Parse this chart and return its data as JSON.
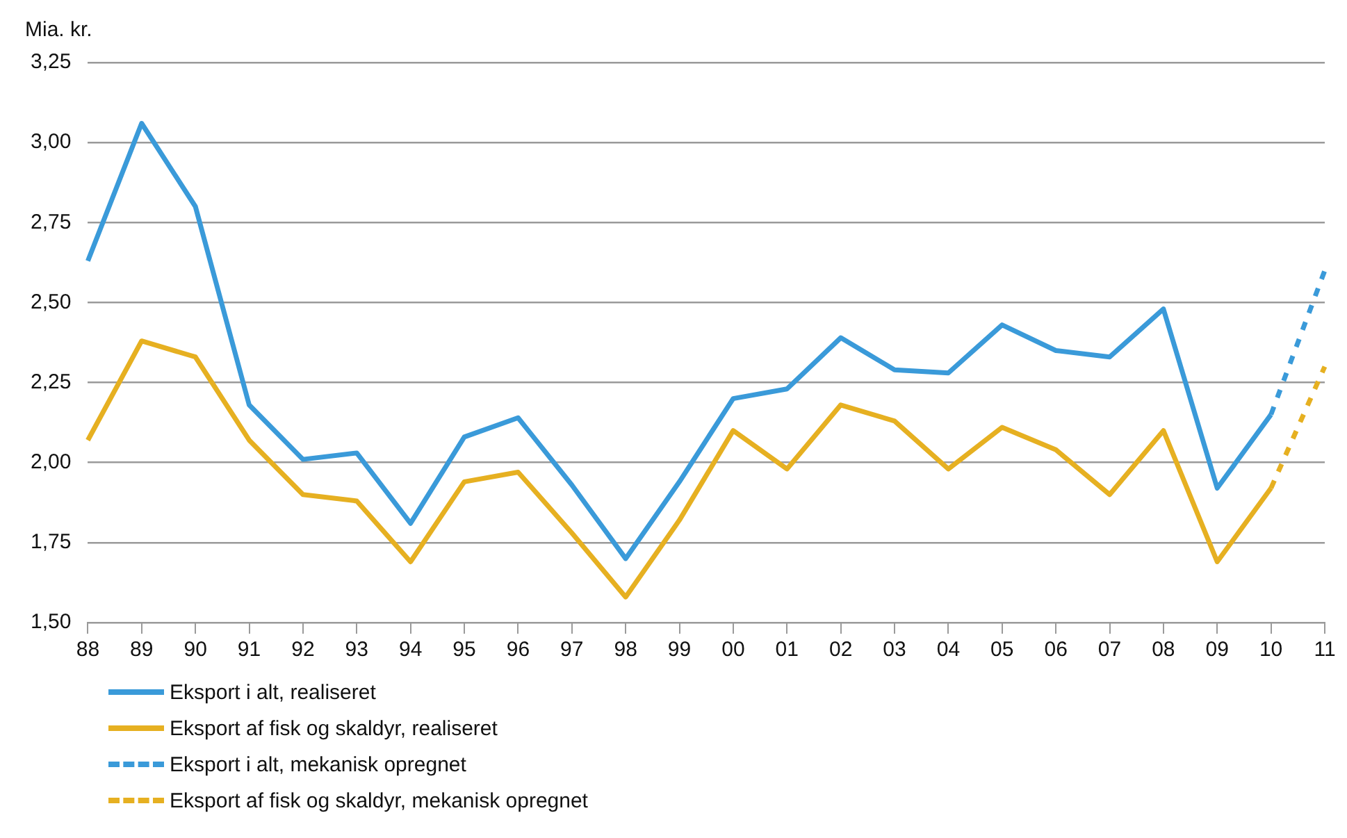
{
  "chart_data": {
    "type": "line",
    "ylabel": "Mia. kr.",
    "categories": [
      "88",
      "89",
      "90",
      "91",
      "92",
      "93",
      "94",
      "95",
      "96",
      "97",
      "98",
      "99",
      "00",
      "01",
      "02",
      "03",
      "04",
      "05",
      "06",
      "07",
      "08",
      "09",
      "10",
      "11"
    ],
    "series": [
      {
        "name": "Eksport i alt, realiseret",
        "color": "#3a9ad9",
        "line_style": "solid",
        "values": [
          2.63,
          3.06,
          2.8,
          2.18,
          2.01,
          2.03,
          1.81,
          2.08,
          2.14,
          1.93,
          1.7,
          1.94,
          2.2,
          2.23,
          2.39,
          2.29,
          2.28,
          2.43,
          2.35,
          2.33,
          2.48,
          1.92,
          2.15,
          null
        ]
      },
      {
        "name": "Eksport af fisk og skaldyr, realiseret",
        "color": "#e6b021",
        "line_style": "solid",
        "values": [
          2.07,
          2.38,
          2.33,
          2.07,
          1.9,
          1.88,
          1.69,
          1.94,
          1.97,
          1.78,
          1.58,
          1.82,
          2.1,
          1.98,
          2.18,
          2.13,
          1.98,
          2.11,
          2.04,
          1.9,
          2.1,
          1.69,
          1.92,
          null
        ]
      },
      {
        "name": "Eksport i alt, mekanisk opregnet",
        "color": "#3a9ad9",
        "line_style": "dashed",
        "values": [
          null,
          null,
          null,
          null,
          null,
          null,
          null,
          null,
          null,
          null,
          null,
          null,
          null,
          null,
          null,
          null,
          null,
          null,
          null,
          null,
          null,
          null,
          2.15,
          2.6
        ]
      },
      {
        "name": "Eksport af fisk og skaldyr, mekanisk opregnet",
        "color": "#e6b021",
        "line_style": "dashed",
        "values": [
          null,
          null,
          null,
          null,
          null,
          null,
          null,
          null,
          null,
          null,
          null,
          null,
          null,
          null,
          null,
          null,
          null,
          null,
          null,
          null,
          null,
          null,
          1.92,
          2.3
        ]
      }
    ],
    "ylim": [
      1.5,
      3.25
    ],
    "yticks": [
      {
        "value": 1.5,
        "label": "1,50"
      },
      {
        "value": 1.75,
        "label": "1,75"
      },
      {
        "value": 2,
        "label": "2,00"
      },
      {
        "value": 2.25,
        "label": "2,25"
      },
      {
        "value": 2.5,
        "label": "2,50"
      },
      {
        "value": 2.75,
        "label": "2,75"
      },
      {
        "value": 3,
        "label": "3,00"
      },
      {
        "value": 3.25,
        "label": "3,25"
      }
    ],
    "grid": "y",
    "legend": "bottom left",
    "marker": "none"
  }
}
